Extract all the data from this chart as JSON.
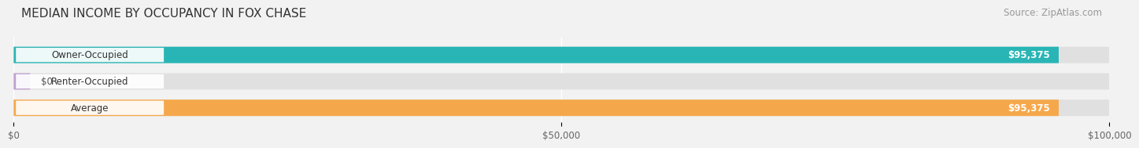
{
  "title": "MEDIAN INCOME BY OCCUPANCY IN FOX CHASE",
  "source": "Source: ZipAtlas.com",
  "categories": [
    "Owner-Occupied",
    "Renter-Occupied",
    "Average"
  ],
  "values": [
    95375,
    0,
    95375
  ],
  "bar_colors": [
    "#29b5b5",
    "#c0a0d0",
    "#f5a84b"
  ],
  "value_labels": [
    "$95,375",
    "$0",
    "$95,375"
  ],
  "xlim": [
    0,
    100000
  ],
  "xtick_labels": [
    "$0",
    "$50,000",
    "$100,000"
  ],
  "xtick_values": [
    0,
    50000,
    100000
  ],
  "bg_color": "#f2f2f2",
  "bar_bg_color": "#e0e0e0",
  "title_fontsize": 11,
  "source_fontsize": 8.5,
  "label_fontsize": 8.5,
  "value_fontsize": 8.5
}
